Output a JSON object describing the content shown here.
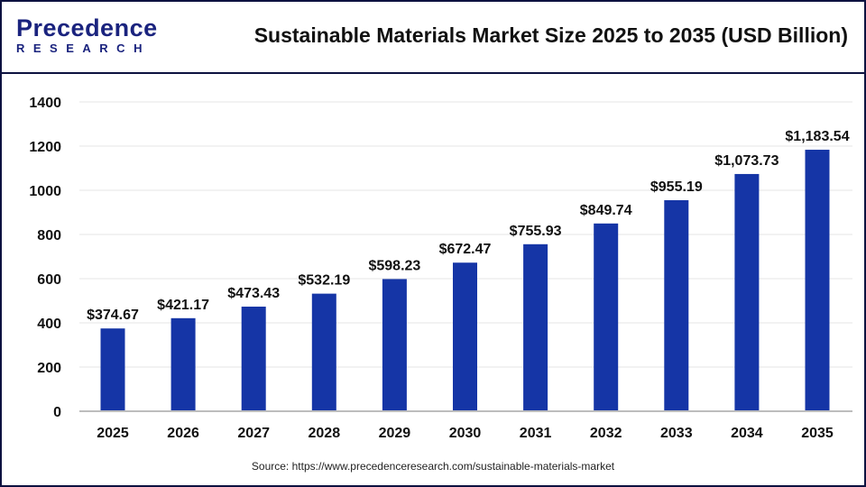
{
  "logo": {
    "line1": "Precedence",
    "line2": "RESEARCH"
  },
  "title": "Sustainable Materials Market Size 2025 to 2035 (USD Billion)",
  "source": "Source: https://www.precedenceresearch.com/sustainable-materials-market",
  "chart_data": {
    "type": "bar",
    "title": "Sustainable Materials Market Size 2025 to 2035 (USD Billion)",
    "categories": [
      "2025",
      "2026",
      "2027",
      "2028",
      "2029",
      "2030",
      "2031",
      "2032",
      "2033",
      "2034",
      "2035"
    ],
    "values": [
      374.67,
      421.17,
      473.43,
      532.19,
      598.23,
      672.47,
      755.93,
      849.74,
      955.19,
      1073.73,
      1183.54
    ],
    "data_labels": [
      "$374.67",
      "$421.17",
      "$473.43",
      "$532.19",
      "$598.23",
      "$672.47",
      "$755.93",
      "$849.74",
      "$955.19",
      "$1,073.73",
      "$1,183.54"
    ],
    "yticks": [
      "0",
      "200",
      "400",
      "600",
      "800",
      "1000",
      "1200",
      "1400"
    ],
    "ylim": [
      0,
      1400
    ],
    "grid": true,
    "bar_color": "#1535a6"
  }
}
